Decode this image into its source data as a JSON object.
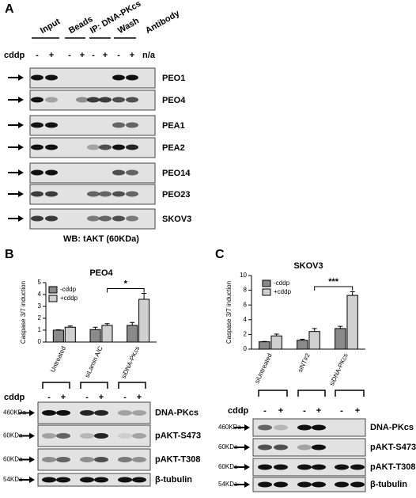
{
  "panel_a": {
    "letter": "A",
    "columns": [
      "Input",
      "Beads",
      "IP: DNA-PKcs",
      "Wash",
      "Antibody"
    ],
    "treatment_label": "cddp",
    "signs": [
      "-",
      "+",
      "-",
      "+",
      "-",
      "+",
      "-",
      "+"
    ],
    "na": "n/a",
    "rows": [
      "PEO1",
      "PEO4",
      "PEA1",
      "PEA2",
      "PEO14",
      "PEO23",
      "SKOV3"
    ],
    "caption": "WB: tAKT (60KDa)"
  },
  "panel_b": {
    "letter": "B",
    "treatment_label": "cddp",
    "signs": [
      "-",
      "+",
      "-",
      "+",
      "-",
      "+"
    ],
    "blots": [
      {
        "size": "460KDa",
        "label": "DNA-PKcs"
      },
      {
        "size": "60KDa",
        "label": "pAKT-S473"
      },
      {
        "size": "60KDa",
        "label": "pAKT-T308"
      },
      {
        "size": "54KDa",
        "label": "β-tubulin"
      }
    ]
  },
  "panel_c": {
    "letter": "C",
    "treatment_label": "cddp",
    "signs": [
      "-",
      "+",
      "-",
      "+",
      "-",
      "+"
    ],
    "blots": [
      {
        "size": "460KDa",
        "label": "DNA-PKcs"
      },
      {
        "size": "60KDa",
        "label": "pAKT-S473"
      },
      {
        "size": "60KDa",
        "label": "pAKT-T308"
      },
      {
        "size": "54KDa",
        "label": "β-tubulin"
      }
    ]
  },
  "chart_data": [
    {
      "type": "bar",
      "title": "PEO4",
      "y_label": "Caspase 3/7 induction",
      "categories": [
        "Untreated",
        "siLamin A/C",
        "siDNA-PKcs"
      ],
      "series": [
        {
          "name": "-cddp",
          "color": "#8a8a8a",
          "values": [
            1.0,
            1.05,
            1.4
          ],
          "errors": [
            0.03,
            0.2,
            0.25
          ]
        },
        {
          "name": "+cddp",
          "color": "#d0d0d0",
          "values": [
            1.25,
            1.4,
            3.6
          ],
          "errors": [
            0.1,
            0.15,
            0.5
          ]
        }
      ],
      "ylim": [
        0,
        5
      ],
      "yticks": [
        0,
        1,
        2,
        3,
        4,
        5
      ],
      "annotation": "*"
    },
    {
      "type": "bar",
      "title": "SKOV3",
      "y_label": "Caspase 3/7 induction",
      "categories": [
        "siUntreated",
        "siNT#2",
        "siDNA-PKcs"
      ],
      "series": [
        {
          "name": "-cddp",
          "color": "#8a8a8a",
          "values": [
            1.0,
            1.2,
            2.8
          ],
          "errors": [
            0.05,
            0.15,
            0.3
          ]
        },
        {
          "name": "+cddp",
          "color": "#d0d0d0",
          "values": [
            1.8,
            2.4,
            7.3
          ],
          "errors": [
            0.25,
            0.4,
            0.5
          ]
        }
      ],
      "ylim": [
        0,
        10
      ],
      "yticks": [
        0,
        2,
        4,
        6,
        8,
        10
      ],
      "annotation": "***"
    }
  ]
}
